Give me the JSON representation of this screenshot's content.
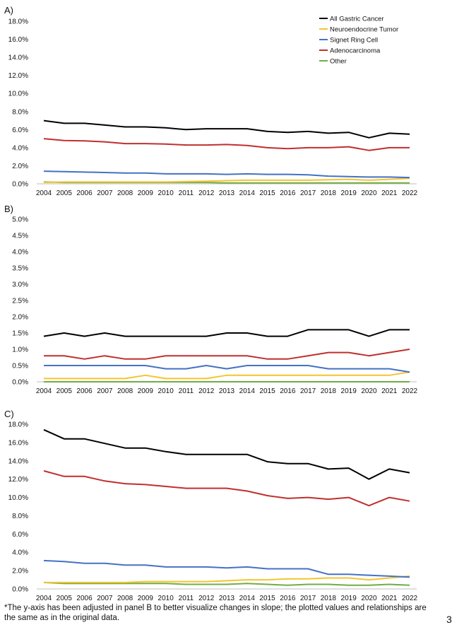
{
  "chart_data": [
    {
      "type": "line",
      "panel_label": "A)",
      "x": [
        "2004",
        "2005",
        "2006",
        "2007",
        "2008",
        "2009",
        "2010",
        "2011",
        "2012",
        "2013",
        "2014",
        "2015",
        "2016",
        "2017",
        "2018",
        "2019",
        "2020",
        "2021",
        "2022"
      ],
      "ylim": [
        0,
        18
      ],
      "yticks": [
        "0.0%",
        "2.0%",
        "4.0%",
        "6.0%",
        "8.0%",
        "10.0%",
        "12.0%",
        "14.0%",
        "16.0%",
        "18.0%"
      ],
      "legend_position": "top-right",
      "grid": false,
      "series": [
        {
          "name": "All Gastric Cancer",
          "color": "#000000",
          "values": [
            7.0,
            6.7,
            6.7,
            6.5,
            6.3,
            6.3,
            6.2,
            6.0,
            6.1,
            6.1,
            6.1,
            5.8,
            5.7,
            5.8,
            5.6,
            5.7,
            5.1,
            5.6,
            5.5
          ]
        },
        {
          "name": "Neuroendocrine Tumor",
          "color": "#f4c430",
          "values": [
            0.15,
            0.2,
            0.2,
            0.2,
            0.2,
            0.2,
            0.2,
            0.25,
            0.3,
            0.35,
            0.4,
            0.4,
            0.4,
            0.4,
            0.45,
            0.5,
            0.4,
            0.5,
            0.6
          ]
        },
        {
          "name": "Signet Ring Cell",
          "color": "#4472c4",
          "values": [
            1.4,
            1.35,
            1.3,
            1.25,
            1.2,
            1.2,
            1.1,
            1.1,
            1.1,
            1.05,
            1.1,
            1.05,
            1.05,
            1.0,
            0.85,
            0.8,
            0.75,
            0.75,
            0.7
          ]
        },
        {
          "name": "Adenocarcinoma",
          "color": "#c0302e",
          "values": [
            5.0,
            4.8,
            4.75,
            4.65,
            4.45,
            4.45,
            4.4,
            4.3,
            4.3,
            4.35,
            4.25,
            4.0,
            3.9,
            4.0,
            4.0,
            4.1,
            3.7,
            4.0,
            4.0
          ]
        },
        {
          "name": "Other",
          "color": "#70ad47",
          "values": [
            0.2,
            0.15,
            0.15,
            0.15,
            0.15,
            0.15,
            0.15,
            0.15,
            0.15,
            0.1,
            0.1,
            0.1,
            0.1,
            0.1,
            0.1,
            0.1,
            0.1,
            0.1,
            0.1
          ]
        }
      ]
    },
    {
      "type": "line",
      "panel_label": "B)",
      "x": [
        "2004",
        "2005",
        "2006",
        "2007",
        "2008",
        "2009",
        "2010",
        "2011",
        "2012",
        "2013",
        "2014",
        "2015",
        "2016",
        "2017",
        "2018",
        "2019",
        "2020",
        "2021",
        "2022"
      ],
      "ylim": [
        0,
        5
      ],
      "yticks": [
        "0.0%",
        "0.5%",
        "1.0%",
        "1.5%",
        "2.0%",
        "2.5%",
        "3.0%",
        "3.5%",
        "4.0%",
        "4.5%",
        "5.0%"
      ],
      "grid": false,
      "series": [
        {
          "color": "#000000",
          "values": [
            1.4,
            1.5,
            1.4,
            1.5,
            1.4,
            1.4,
            1.4,
            1.4,
            1.4,
            1.5,
            1.5,
            1.4,
            1.4,
            1.6,
            1.6,
            1.6,
            1.4,
            1.6,
            1.6
          ]
        },
        {
          "color": "#f4c430",
          "values": [
            0.1,
            0.1,
            0.1,
            0.1,
            0.1,
            0.2,
            0.1,
            0.1,
            0.1,
            0.2,
            0.2,
            0.2,
            0.2,
            0.2,
            0.2,
            0.2,
            0.2,
            0.2,
            0.3
          ]
        },
        {
          "color": "#4472c4",
          "values": [
            0.5,
            0.5,
            0.5,
            0.5,
            0.5,
            0.5,
            0.4,
            0.4,
            0.5,
            0.4,
            0.5,
            0.5,
            0.5,
            0.5,
            0.4,
            0.4,
            0.4,
            0.4,
            0.3
          ]
        },
        {
          "color": "#c0302e",
          "values": [
            0.8,
            0.8,
            0.7,
            0.8,
            0.7,
            0.7,
            0.8,
            0.8,
            0.8,
            0.8,
            0.8,
            0.7,
            0.7,
            0.8,
            0.9,
            0.9,
            0.8,
            0.9,
            1.0
          ]
        },
        {
          "color": "#70ad47",
          "values": [
            0,
            0,
            0,
            0,
            0,
            0,
            0,
            0,
            0,
            0,
            0,
            0,
            0,
            0,
            0,
            0,
            0,
            0,
            0
          ]
        }
      ]
    },
    {
      "type": "line",
      "panel_label": "C)",
      "x": [
        "2004",
        "2005",
        "2006",
        "2007",
        "2008",
        "2009",
        "2010",
        "2011",
        "2012",
        "2013",
        "2014",
        "2015",
        "2016",
        "2017",
        "2018",
        "2019",
        "2020",
        "2021",
        "2022"
      ],
      "ylim": [
        0,
        18
      ],
      "yticks": [
        "0.0%",
        "2.0%",
        "4.0%",
        "6.0%",
        "8.0%",
        "10.0%",
        "12.0%",
        "14.0%",
        "16.0%",
        "18.0%"
      ],
      "grid": false,
      "series": [
        {
          "color": "#000000",
          "values": [
            17.4,
            16.4,
            16.4,
            15.9,
            15.4,
            15.4,
            15.0,
            14.7,
            14.7,
            14.7,
            14.7,
            13.9,
            13.7,
            13.7,
            13.1,
            13.2,
            12.0,
            13.1,
            12.7
          ]
        },
        {
          "color": "#f4c430",
          "values": [
            0.7,
            0.7,
            0.7,
            0.7,
            0.7,
            0.8,
            0.8,
            0.8,
            0.8,
            0.9,
            1.0,
            1.0,
            1.1,
            1.1,
            1.2,
            1.2,
            1.0,
            1.2,
            1.4
          ]
        },
        {
          "color": "#4472c4",
          "values": [
            3.1,
            3.0,
            2.8,
            2.8,
            2.6,
            2.6,
            2.4,
            2.4,
            2.4,
            2.3,
            2.4,
            2.2,
            2.2,
            2.2,
            1.6,
            1.6,
            1.5,
            1.4,
            1.3
          ]
        },
        {
          "color": "#c0302e",
          "values": [
            12.9,
            12.3,
            12.3,
            11.8,
            11.5,
            11.4,
            11.2,
            11.0,
            11.0,
            11.0,
            10.7,
            10.2,
            9.9,
            10.0,
            9.8,
            10.0,
            9.1,
            10.0,
            9.6
          ]
        },
        {
          "color": "#70ad47",
          "values": [
            0.7,
            0.6,
            0.6,
            0.6,
            0.6,
            0.6,
            0.6,
            0.5,
            0.5,
            0.5,
            0.6,
            0.5,
            0.4,
            0.5,
            0.5,
            0.4,
            0.4,
            0.5,
            0.4
          ]
        }
      ]
    }
  ],
  "footnote": "*The y-axis has been adjusted in panel B to better visualize changes in slope; the plotted values and relationships are the same as in the original data.",
  "page_number": "3"
}
